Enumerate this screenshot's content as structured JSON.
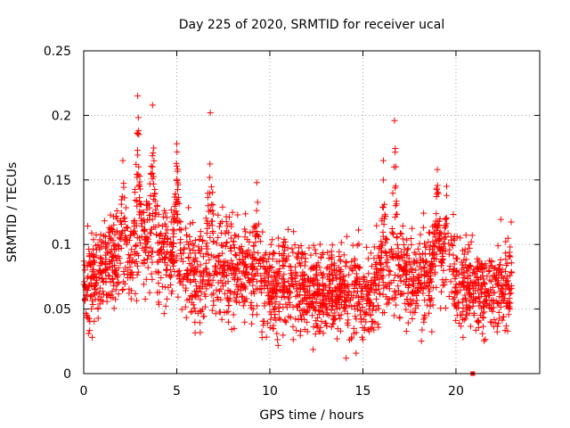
{
  "chart_data": {
    "type": "scatter",
    "title": "Day 225 of 2020, SRMTID for receiver ucal",
    "xlabel": "GPS time / hours",
    "ylabel": "SRMTID / TECUs",
    "xlim": [
      0,
      24.5
    ],
    "ylim": [
      0,
      0.25
    ],
    "xticks": [
      0,
      5,
      10,
      15,
      20
    ],
    "yticks": [
      0,
      0.05,
      0.1,
      0.15,
      0.2,
      0.25
    ],
    "xtick_labels": [
      "0",
      "5",
      "10",
      "15",
      "20"
    ],
    "ytick_labels": [
      "0",
      "0.05",
      "0.1",
      "0.15",
      "0.2",
      "0.25"
    ],
    "grid": true,
    "marker": "plus",
    "color": "#ff0000",
    "series": [
      {
        "name": "SRMTID",
        "baseline": [
          [
            0,
            0.07
          ],
          [
            1,
            0.085
          ],
          [
            2,
            0.09
          ],
          [
            3,
            0.095
          ],
          [
            3.5,
            0.1
          ],
          [
            4,
            0.095
          ],
          [
            5,
            0.09
          ],
          [
            6,
            0.075
          ],
          [
            7,
            0.085
          ],
          [
            8,
            0.08
          ],
          [
            9,
            0.08
          ],
          [
            10,
            0.065
          ],
          [
            11,
            0.07
          ],
          [
            12,
            0.065
          ],
          [
            13,
            0.06
          ],
          [
            14,
            0.065
          ],
          [
            15,
            0.06
          ],
          [
            16,
            0.065
          ],
          [
            16.7,
            0.08
          ],
          [
            17,
            0.075
          ],
          [
            18,
            0.07
          ],
          [
            19,
            0.08
          ],
          [
            19.5,
            0.085
          ],
          [
            20,
            0.075
          ],
          [
            20.5,
            0.07
          ],
          [
            21,
            0.07
          ],
          [
            22,
            0.065
          ],
          [
            23,
            0.07
          ]
        ],
        "peaks": [
          {
            "x": 2.1,
            "y": 0.165
          },
          {
            "x": 2.9,
            "y": 0.215
          },
          {
            "x": 3.7,
            "y": 0.208
          },
          {
            "x": 5.0,
            "y": 0.178
          },
          {
            "x": 6.8,
            "y": 0.202
          },
          {
            "x": 9.3,
            "y": 0.148
          },
          {
            "x": 16.1,
            "y": 0.165
          },
          {
            "x": 16.7,
            "y": 0.196
          },
          {
            "x": 19.0,
            "y": 0.158
          },
          {
            "x": 19.5,
            "y": 0.145
          }
        ],
        "x_range": [
          0,
          23
        ],
        "approx_count": 2600,
        "zero_point": {
          "x": 20.9,
          "y": 0.0
        }
      }
    ]
  }
}
